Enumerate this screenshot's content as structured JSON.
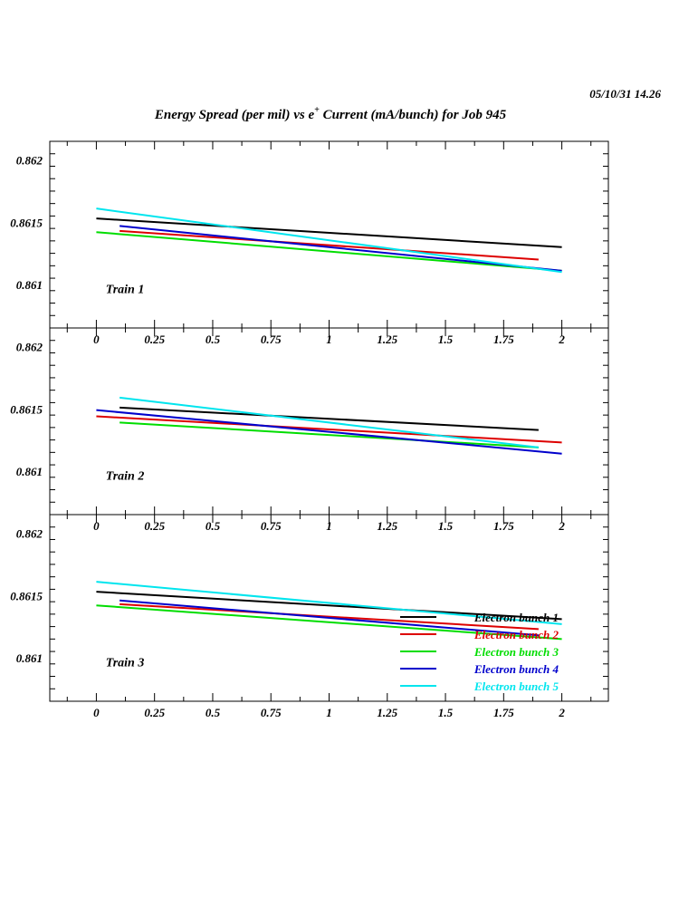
{
  "header": {
    "timestamp": "05/10/31   14.26",
    "title_prefix": "Energy Spread (per mil) vs e",
    "title_superscript": "+",
    "title_suffix": " Current (mA/bunch) for Job 945"
  },
  "colors": {
    "axis": "#000000",
    "series": [
      "#000000",
      "#dd0000",
      "#00dd00",
      "#0000cc",
      "#00e5ee"
    ]
  },
  "chart_data": [
    {
      "type": "line",
      "panel_label": "Train 1",
      "xlim": [
        -0.2,
        2.2
      ],
      "ylim": [
        0.86065,
        0.86215
      ],
      "x_ticks": [
        "0",
        "0.25",
        "0.5",
        "0.75",
        "1",
        "1.25",
        "1.5",
        "1.75",
        "2"
      ],
      "y_ticks": [
        "0.862",
        "0.8615",
        "0.861"
      ],
      "series": [
        {
          "x": [
            0,
            2
          ],
          "y": [
            0.86153,
            0.8613
          ]
        },
        {
          "x": [
            0.1,
            1.9
          ],
          "y": [
            0.86143,
            0.8612
          ]
        },
        {
          "x": [
            0,
            2
          ],
          "y": [
            0.86142,
            0.86111
          ]
        },
        {
          "x": [
            0.1,
            2
          ],
          "y": [
            0.86147,
            0.86111
          ]
        },
        {
          "x": [
            0,
            2
          ],
          "y": [
            0.86161,
            0.8611
          ]
        }
      ]
    },
    {
      "type": "line",
      "panel_label": "Train 2",
      "xlim": [
        -0.2,
        2.2
      ],
      "ylim": [
        0.86065,
        0.86215
      ],
      "x_ticks": [
        "0",
        "0.25",
        "0.5",
        "0.75",
        "1",
        "1.25",
        "1.5",
        "1.75",
        "2"
      ],
      "y_ticks": [
        "0.862",
        "0.8615",
        "0.861"
      ],
      "series": [
        {
          "x": [
            0.1,
            1.9
          ],
          "y": [
            0.86151,
            0.86133
          ]
        },
        {
          "x": [
            0,
            2
          ],
          "y": [
            0.86144,
            0.86123
          ]
        },
        {
          "x": [
            0.1,
            1.9
          ],
          "y": [
            0.86139,
            0.86119
          ]
        },
        {
          "x": [
            0,
            2
          ],
          "y": [
            0.86149,
            0.86114
          ]
        },
        {
          "x": [
            0.1,
            1.9
          ],
          "y": [
            0.86159,
            0.86119
          ]
        }
      ]
    },
    {
      "type": "line",
      "panel_label": "Train 3",
      "xlim": [
        -0.2,
        2.2
      ],
      "ylim": [
        0.86065,
        0.86215
      ],
      "x_ticks": [
        "0",
        "0.25",
        "0.5",
        "0.75",
        "1",
        "1.25",
        "1.5",
        "1.75",
        "2"
      ],
      "y_ticks": [
        "0.862",
        "0.8615",
        "0.861"
      ],
      "legend": "bottom-right",
      "series": [
        {
          "name": "Electron bunch 1",
          "x": [
            0,
            2
          ],
          "y": [
            0.86153,
            0.86131
          ]
        },
        {
          "name": "Electron bunch 2",
          "x": [
            0.1,
            1.9
          ],
          "y": [
            0.86143,
            0.86123
          ]
        },
        {
          "name": "Electron bunch 3",
          "x": [
            0,
            2
          ],
          "y": [
            0.86142,
            0.86115
          ]
        },
        {
          "name": "Electron bunch 4",
          "x": [
            0.1,
            1.9
          ],
          "y": [
            0.86146,
            0.86118
          ]
        },
        {
          "name": "Electron bunch 5",
          "x": [
            0,
            2
          ],
          "y": [
            0.86161,
            0.86127
          ]
        }
      ]
    }
  ]
}
